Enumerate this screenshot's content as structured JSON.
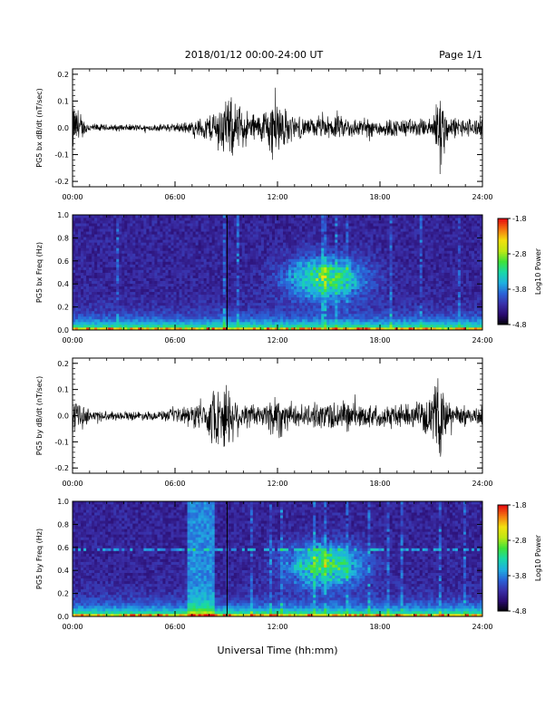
{
  "header": {
    "title": "2018/01/12  00:00-24:00 UT",
    "page": "Page 1/1"
  },
  "footer": {
    "xlabel": "Universal Time (hh:mm)"
  },
  "colors": {
    "trace": "#000000",
    "colormap": [
      "#000000",
      "#2a0b6e",
      "#3a2fa8",
      "#2a63d8",
      "#1fb0e0",
      "#19d8a8",
      "#3fe23a",
      "#bde815",
      "#f2e00f",
      "#f47a10",
      "#e81010"
    ]
  },
  "chart_data": [
    {
      "type": "line",
      "ylabel": "PG5 bx dB/dt (nT/sec)",
      "xlim": [
        0,
        24
      ],
      "ylim": [
        -0.22,
        0.22
      ],
      "yticks": [
        "0.2",
        "0.1",
        "0.0",
        "-0.1",
        "-0.2"
      ],
      "xticks": [
        "00:00",
        "06:00",
        "12:00",
        "18:00",
        "24:00"
      ],
      "envelope_hours": [
        0,
        0.2,
        0.5,
        1,
        2,
        3,
        4,
        5,
        6,
        7,
        8,
        8.5,
        9,
        9.5,
        10,
        11,
        11.5,
        12,
        12.5,
        13,
        14,
        15,
        16,
        17,
        18,
        19,
        20,
        21,
        21.5,
        22,
        23,
        24
      ],
      "envelope_amplitude": [
        0.12,
        0.09,
        0.05,
        0.02,
        0.015,
        0.015,
        0.015,
        0.015,
        0.02,
        0.03,
        0.06,
        0.1,
        0.14,
        0.12,
        0.08,
        0.06,
        0.12,
        0.14,
        0.08,
        0.05,
        0.04,
        0.05,
        0.05,
        0.04,
        0.04,
        0.04,
        0.04,
        0.04,
        0.2,
        0.05,
        0.04,
        0.05
      ]
    },
    {
      "type": "heatmap",
      "ylabel": "PG5 bx Freq (Hz)",
      "xlim": [
        0,
        24
      ],
      "ylim": [
        0,
        1.0
      ],
      "yticks": [
        "1.0",
        "0.8",
        "0.6",
        "0.4",
        "0.2",
        "0.0"
      ],
      "xticks": [
        "00:00",
        "06:00",
        "12:00",
        "18:00",
        "24:00"
      ],
      "colorbar_label": "Log10 Power",
      "colorbar_ticks": [
        "-1.8",
        "-2.8",
        "-3.8",
        "-4.8"
      ],
      "zlim": [
        -4.8,
        -1.8
      ]
    },
    {
      "type": "line",
      "ylabel": "PG5 by dB/dt (nT/sec)",
      "xlim": [
        0,
        24
      ],
      "ylim": [
        -0.22,
        0.22
      ],
      "yticks": [
        "0.2",
        "0.1",
        "0.0",
        "-0.1",
        "-0.2"
      ],
      "xticks": [
        "00:00",
        "06:00",
        "12:00",
        "18:00",
        "24:00"
      ],
      "envelope_hours": [
        0,
        0.2,
        0.5,
        1,
        2,
        3,
        4,
        5,
        6,
        7,
        8,
        8.5,
        9,
        9.5,
        10,
        11,
        11.5,
        12,
        12.5,
        13,
        14,
        15,
        16,
        17,
        18,
        19,
        20,
        21,
        21.5,
        22,
        23,
        24
      ],
      "envelope_amplitude": [
        0.08,
        0.07,
        0.05,
        0.03,
        0.02,
        0.02,
        0.02,
        0.02,
        0.03,
        0.05,
        0.09,
        0.14,
        0.16,
        0.1,
        0.06,
        0.05,
        0.08,
        0.12,
        0.07,
        0.05,
        0.05,
        0.07,
        0.07,
        0.05,
        0.05,
        0.05,
        0.05,
        0.08,
        0.2,
        0.06,
        0.04,
        0.05
      ]
    },
    {
      "type": "heatmap",
      "ylabel": "PG5 by Freq (Hz)",
      "xlim": [
        0,
        24
      ],
      "ylim": [
        0,
        1.0
      ],
      "yticks": [
        "1.0",
        "0.8",
        "0.6",
        "0.4",
        "0.2",
        "0.0"
      ],
      "xticks": [
        "00:00",
        "06:00",
        "12:00",
        "18:00",
        "24:00"
      ],
      "colorbar_label": "Log10 Power",
      "colorbar_ticks": [
        "-1.8",
        "-2.8",
        "-3.8",
        "-4.8"
      ],
      "zlim": [
        -4.8,
        -1.8
      ]
    }
  ]
}
